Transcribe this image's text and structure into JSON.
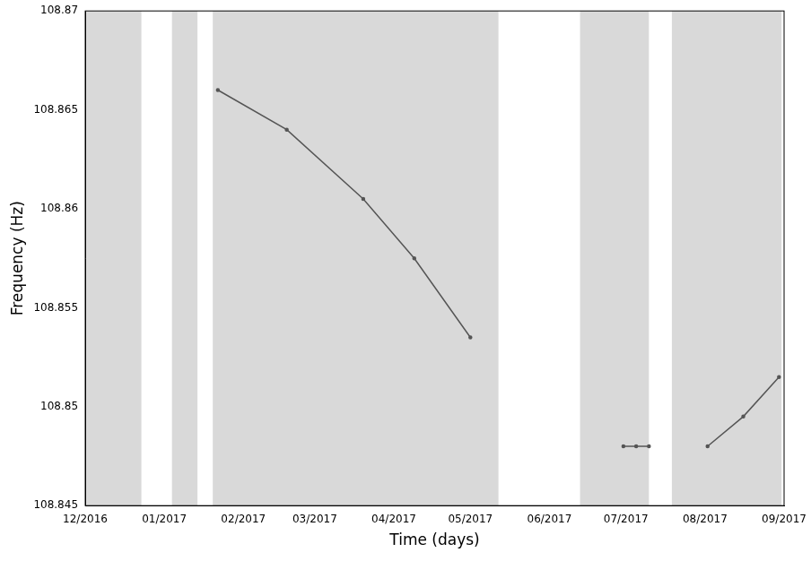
{
  "chart_data": {
    "type": "scatter",
    "x_label": "Time (days)",
    "y_label": "Frequency (Hz)",
    "xlim": [
      0,
      274
    ],
    "xticks": [
      {
        "value": 0,
        "label": "12/2016"
      },
      {
        "value": 31,
        "label": "01/2017"
      },
      {
        "value": 62,
        "label": "02/2017"
      },
      {
        "value": 90,
        "label": "03/2017"
      },
      {
        "value": 121,
        "label": "04/2017"
      },
      {
        "value": 151,
        "label": "05/2017"
      },
      {
        "value": 182,
        "label": "06/2017"
      },
      {
        "value": 212,
        "label": "07/2017"
      },
      {
        "value": 243,
        "label": "08/2017"
      },
      {
        "value": 274,
        "label": "09/2017"
      }
    ],
    "ylim": [
      108.845,
      108.87
    ],
    "yticks": [
      108.845,
      108.85,
      108.855,
      108.86,
      108.865,
      108.87
    ],
    "grid": false,
    "observation_periods": [
      [
        0.4,
        22
      ],
      [
        34,
        44
      ],
      [
        50,
        162
      ],
      [
        194,
        221
      ],
      [
        230,
        273
      ]
    ],
    "observation_color": "#d9d9d9",
    "series": [
      {
        "color": "#555555",
        "marker": "circle",
        "line_style": "solid",
        "x": [
          52,
          79,
          109,
          129,
          151
        ],
        "values": [
          108.866,
          108.864,
          108.8605,
          108.8575,
          108.8535
        ]
      },
      {
        "color": "#555555",
        "marker": "circle",
        "line_style": "solid",
        "x": [
          211,
          216,
          221
        ],
        "values": [
          108.848,
          108.848,
          108.848
        ]
      },
      {
        "color": "#555555",
        "marker": "circle",
        "line_style": "solid",
        "x": [
          244,
          258,
          272
        ],
        "values": [
          108.848,
          108.8495,
          108.8515
        ]
      }
    ]
  }
}
